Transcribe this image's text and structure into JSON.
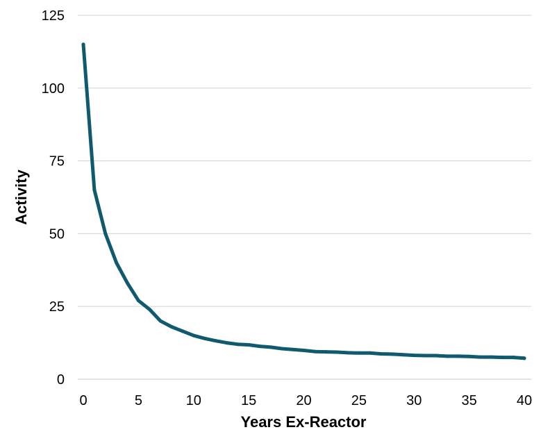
{
  "colors": {
    "line": "#0f5a6e",
    "gridline": "#d9d9d9",
    "background": "#ffffff"
  },
  "chart_data": {
    "type": "line",
    "title": "",
    "xlabel": "Years Ex-Reactor",
    "ylabel": "Activity",
    "xlim": [
      0,
      40
    ],
    "ylim": [
      0,
      125
    ],
    "x_ticks": [
      0,
      5,
      10,
      15,
      20,
      25,
      30,
      35,
      40
    ],
    "y_ticks": [
      0,
      25,
      50,
      75,
      100,
      125
    ],
    "grid": "horizontal",
    "legend": "none",
    "series": [
      {
        "x": [
          0,
          1,
          2,
          3,
          4,
          5,
          6,
          7,
          8,
          9,
          10,
          11,
          12,
          13,
          14,
          15,
          16,
          17,
          18,
          19,
          20,
          21,
          22,
          23,
          24,
          25,
          26,
          27,
          28,
          29,
          30,
          31,
          32,
          33,
          34,
          35,
          36,
          37,
          38,
          39,
          40
        ],
        "y": [
          115,
          65,
          50,
          40,
          33,
          27,
          24,
          20,
          18,
          16.5,
          15,
          14,
          13.2,
          12.5,
          12,
          11.8,
          11.3,
          11,
          10.5,
          10.2,
          9.9,
          9.5,
          9.4,
          9.3,
          9.1,
          9,
          9,
          8.7,
          8.6,
          8.4,
          8.2,
          8.1,
          8.1,
          7.9,
          7.9,
          7.8,
          7.6,
          7.6,
          7.5,
          7.5,
          7.2
        ]
      }
    ]
  }
}
